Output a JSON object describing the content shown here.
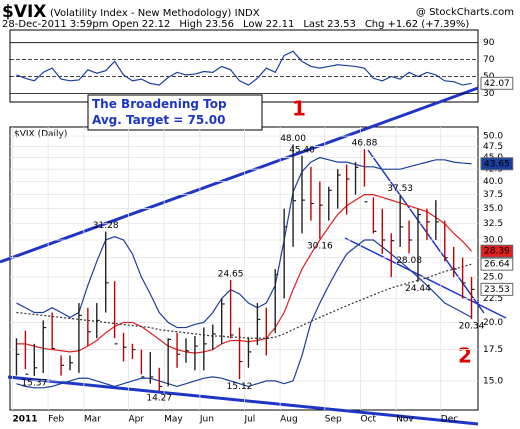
{
  "header": {
    "symbol": "$VIX",
    "description": "(Volatility Index - New Methodology) INDX",
    "source": "@ StockCharts.com",
    "date": "28-Dec-2011 3:59pm",
    "fields": [
      {
        "name": "Open",
        "value": 22.12
      },
      {
        "name": "High",
        "value": 23.56
      },
      {
        "name": "Low",
        "value": 22.11
      },
      {
        "name": "Last",
        "value": 23.53
      },
      {
        "name": "Chg",
        "value": "+1.62 (+7.39%)"
      }
    ]
  },
  "annotations": {
    "box": "The Broadening Top Avg. Target = 75.00",
    "wave1": "1",
    "wave2": "2"
  },
  "chart_data": [
    {
      "type": "line",
      "color": "#1a3f9e",
      "values": [
        52,
        48,
        45,
        55,
        60,
        47,
        45,
        46,
        58,
        54,
        57,
        68,
        52,
        45,
        47,
        42,
        40,
        49,
        55,
        52,
        53,
        56,
        55,
        62,
        58,
        45,
        40,
        48,
        60,
        55,
        75,
        80,
        68,
        62,
        60,
        62,
        64,
        63,
        62,
        60,
        48,
        45,
        50,
        47,
        55,
        50,
        55,
        52,
        45,
        44,
        40,
        42.07
      ],
      "value_labels": [
        null,
        null,
        null,
        null,
        null,
        null,
        null,
        null,
        null,
        null,
        null,
        null,
        null,
        null,
        null,
        null,
        null,
        null,
        null,
        null,
        null,
        null,
        null,
        null,
        null,
        null,
        null,
        null,
        null,
        null,
        null,
        null,
        null,
        null,
        null,
        null,
        null,
        null,
        null,
        null,
        null,
        null,
        null,
        null,
        null,
        null,
        null,
        null,
        null,
        null,
        null,
        "42.07"
      ],
      "ylim": [
        20,
        105
      ],
      "yticks": [
        30,
        50,
        70,
        90
      ]
    },
    {
      "type": "ohlc",
      "title": "$VIX (Daily)",
      "color": "#222222",
      "log_scale": true,
      "grid": true,
      "categories": [
        "2011",
        null,
        null,
        null,
        "Feb",
        null,
        null,
        null,
        "Mar",
        null,
        null,
        null,
        null,
        "Apr",
        null,
        null,
        null,
        "May",
        null,
        null,
        null,
        "Jun",
        null,
        null,
        null,
        null,
        "Jul",
        null,
        null,
        null,
        "Aug",
        null,
        null,
        null,
        null,
        "Sep",
        null,
        null,
        null,
        "Oct",
        null,
        null,
        null,
        "Nov",
        null,
        null,
        null,
        null,
        "Dec",
        null,
        null,
        null
      ],
      "high": [
        18.5,
        19.2,
        18,
        20.2,
        21,
        17,
        17,
        22,
        21.5,
        22,
        31.28,
        24.5,
        19,
        18,
        17.5,
        17.3,
        16,
        18.5,
        19,
        18.5,
        18.7,
        19.5,
        19.8,
        22.5,
        24.65,
        19.5,
        18.6,
        22,
        21.5,
        26,
        35,
        48,
        45.4,
        43,
        40,
        39,
        42.5,
        43.5,
        44,
        46.88,
        37,
        35,
        31,
        37.53,
        33,
        35,
        35,
        36.5,
        33,
        29,
        27.5,
        25
      ],
      "high_labels": [
        null,
        null,
        null,
        null,
        null,
        null,
        null,
        null,
        null,
        null,
        "31.28",
        null,
        null,
        null,
        null,
        null,
        null,
        null,
        null,
        null,
        null,
        null,
        null,
        null,
        "24.65",
        null,
        null,
        null,
        null,
        null,
        null,
        "48.00",
        "45.40",
        null,
        null,
        null,
        null,
        null,
        null,
        "46.88",
        null,
        null,
        null,
        "37.53",
        null,
        null,
        null,
        null,
        null,
        null,
        null,
        null
      ],
      "low": [
        15.4,
        15.9,
        15.37,
        15.6,
        17.5,
        15.4,
        15.8,
        15.6,
        17.8,
        18.5,
        21,
        18.5,
        16.5,
        16.7,
        15.5,
        14.8,
        14.27,
        14.6,
        16,
        16.4,
        15.8,
        15.8,
        17.5,
        18,
        18.5,
        15.12,
        16,
        17.9,
        17,
        19,
        22.5,
        29,
        31,
        33,
        30.16,
        33,
        35,
        34,
        37.5,
        39,
        31,
        28,
        25,
        29,
        28.08,
        24.44,
        30,
        30,
        27,
        25,
        22.5,
        20.34
      ],
      "low_labels": [
        null,
        null,
        "15.37",
        null,
        null,
        null,
        null,
        null,
        null,
        null,
        null,
        null,
        null,
        null,
        null,
        null,
        "14.27",
        null,
        null,
        null,
        null,
        null,
        null,
        null,
        null,
        "15.12",
        null,
        null,
        null,
        null,
        null,
        null,
        null,
        null,
        "30.16",
        null,
        null,
        null,
        null,
        null,
        null,
        null,
        null,
        null,
        "28.08",
        "24.44",
        null,
        null,
        null,
        null,
        null,
        "20.34"
      ],
      "close": [
        17.1,
        15.5,
        16,
        19.5,
        17.6,
        16.2,
        16.4,
        20.7,
        19.1,
        20.2,
        24.3,
        18,
        17.7,
        17.5,
        15.3,
        15.3,
        14.6,
        18.4,
        17.1,
        17.4,
        17.8,
        18,
        18.9,
        21.9,
        18.8,
        16.5,
        17.3,
        20.3,
        18.5,
        25.3,
        32,
        36.4,
        36.5,
        35.9,
        35.6,
        38.3,
        41.3,
        40.5,
        42.9,
        36.2,
        31.3,
        30,
        29.9,
        32,
        30,
        34,
        32.8,
        32.8,
        27.5,
        26,
        24.3,
        23.53
      ],
      "close_labels": [
        null,
        null,
        null,
        null,
        null,
        null,
        null,
        null,
        null,
        null,
        null,
        null,
        null,
        null,
        null,
        null,
        null,
        null,
        null,
        null,
        null,
        null,
        null,
        null,
        null,
        null,
        null,
        null,
        null,
        null,
        null,
        null,
        null,
        null,
        null,
        null,
        null,
        null,
        null,
        null,
        null,
        null,
        null,
        null,
        null,
        null,
        null,
        null,
        null,
        null,
        null,
        "23.53"
      ],
      "lines": [
        {
          "color": "#e02020",
          "values": [
            18,
            18,
            17.8,
            17.6,
            17.5,
            17.4,
            17.3,
            17.4,
            17.8,
            18.3,
            19,
            19.6,
            20,
            20,
            19.6,
            19,
            18.4,
            17.8,
            17.5,
            17.3,
            17.2,
            17.3,
            17.5,
            18,
            18.3,
            18.3,
            18.2,
            18.3,
            18.5,
            19.5,
            21,
            23.5,
            26,
            28,
            30,
            32,
            34,
            35.5,
            36.5,
            37.5,
            37.5,
            37,
            36.5,
            36,
            35.5,
            35,
            34.5,
            33.5,
            32.5,
            31,
            29.8,
            28.39
          ],
          "value_labels": [
            null,
            null,
            null,
            null,
            null,
            null,
            null,
            null,
            null,
            null,
            null,
            null,
            null,
            null,
            null,
            null,
            null,
            null,
            null,
            null,
            null,
            null,
            null,
            null,
            null,
            null,
            null,
            null,
            null,
            null,
            null,
            null,
            null,
            null,
            null,
            null,
            null,
            null,
            null,
            null,
            null,
            null,
            null,
            null,
            null,
            null,
            null,
            null,
            null,
            null,
            null,
            "28.39"
          ]
        },
        {
          "color": "#333333",
          "dashed": true,
          "values": [
            21,
            20.9,
            20.8,
            20.7,
            20.6,
            20.5,
            20.4,
            20.3,
            20.2,
            20.1,
            20,
            19.9,
            19.8,
            19.7,
            19.6,
            19.5,
            19.3,
            19.2,
            19.1,
            19,
            18.9,
            18.8,
            18.7,
            18.7,
            18.6,
            18.6,
            18.5,
            18.5,
            18.5,
            18.6,
            18.9,
            19.3,
            19.7,
            20.1,
            20.5,
            20.9,
            21.3,
            21.7,
            22.1,
            22.5,
            22.9,
            23.3,
            23.7,
            24,
            24.3,
            24.6,
            24.9,
            25.3,
            25.7,
            26,
            26.3,
            26.64
          ],
          "value_labels": [
            null,
            null,
            null,
            null,
            null,
            null,
            null,
            null,
            null,
            null,
            null,
            null,
            null,
            null,
            null,
            null,
            null,
            null,
            null,
            null,
            null,
            null,
            null,
            null,
            null,
            null,
            null,
            null,
            null,
            null,
            null,
            null,
            null,
            null,
            null,
            null,
            null,
            null,
            null,
            null,
            null,
            null,
            null,
            null,
            null,
            null,
            null,
            null,
            null,
            null,
            null,
            "26.64"
          ]
        },
        {
          "color": "#1a3f9e",
          "values": [
            22,
            21.5,
            21,
            21,
            21.5,
            21,
            20.5,
            21,
            24,
            27,
            30,
            30.5,
            30,
            28,
            25,
            23,
            21,
            20,
            19.5,
            19.5,
            19.8,
            20,
            21,
            22.5,
            23.5,
            23,
            22,
            21.5,
            22,
            24,
            30,
            38,
            42,
            44,
            45,
            44.5,
            44,
            44,
            43.5,
            43,
            43,
            42.5,
            42.5,
            42.5,
            43,
            43.5,
            44,
            44.5,
            44.5,
            44,
            43.8,
            43.65
          ],
          "value_labels": [
            null,
            null,
            null,
            null,
            null,
            null,
            null,
            null,
            null,
            null,
            null,
            null,
            null,
            null,
            null,
            null,
            null,
            null,
            null,
            null,
            null,
            null,
            null,
            null,
            null,
            null,
            null,
            null,
            null,
            null,
            null,
            null,
            null,
            null,
            null,
            null,
            null,
            null,
            null,
            null,
            null,
            null,
            null,
            null,
            null,
            null,
            null,
            null,
            null,
            null,
            null,
            "43.65"
          ]
        },
        {
          "color": "#1a3f9e",
          "values": [
            14.8,
            14.6,
            14.5,
            14.5,
            14.6,
            14.8,
            15,
            15.2,
            15.2,
            15,
            14.8,
            14.6,
            14.8,
            15,
            15.2,
            15.2,
            15,
            14.8,
            14.6,
            14.8,
            15,
            15.2,
            15.3,
            15.2,
            15,
            14.8,
            14.6,
            14.8,
            15,
            15,
            14.8,
            15,
            17,
            20,
            22,
            24,
            26,
            28,
            29,
            30,
            30,
            29,
            28,
            27,
            26,
            25,
            24,
            23,
            22,
            21.5,
            21,
            20.5
          ]
        }
      ],
      "ylim": [
        13,
        52.3
      ],
      "yticks": [
        {
          "value": 15,
          "label": "15.0"
        },
        {
          "value": 17.5,
          "label": "17.5"
        },
        {
          "value": 20,
          "label": "20.0"
        },
        {
          "value": 22.5,
          "label": "22.5"
        },
        {
          "value": 25,
          "label": "25.0"
        },
        {
          "value": 27.5,
          "label": "27.5"
        },
        {
          "value": 30,
          "label": "30.0"
        },
        {
          "value": 32.5,
          "label": "32.5"
        },
        {
          "value": 35,
          "label": "35.0"
        },
        {
          "value": 37.5,
          "label": "37.5"
        },
        {
          "value": 40,
          "label": "40.0"
        },
        {
          "value": 42.5,
          "label": "42.5"
        },
        {
          "value": 45,
          "label": "45.0"
        },
        {
          "value": 47.5,
          "label": "47.5"
        },
        {
          "value": 50,
          "label": "50.0"
        }
      ]
    }
  ]
}
